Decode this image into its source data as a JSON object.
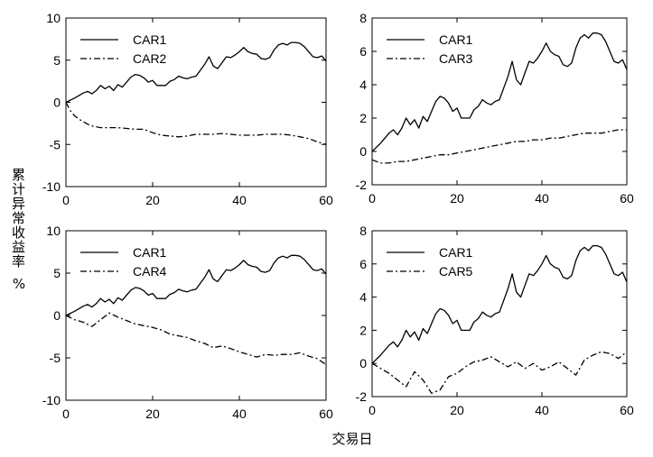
{
  "figure": {
    "ylabel_main": "累计异常收益率",
    "ylabel_unit": "%",
    "xlabel": "交易日"
  },
  "chart_data": [
    {
      "type": "line",
      "panel": "top-left",
      "xlim": [
        0,
        60
      ],
      "ylim": [
        -10,
        10
      ],
      "xticks": [
        0,
        20,
        40,
        60
      ],
      "yticks": [
        -10,
        -5,
        0,
        5,
        10
      ],
      "legend": "top-left",
      "series": [
        {
          "name": "CAR1",
          "style": "solid",
          "x": [
            0,
            2,
            4,
            5,
            6,
            7,
            8,
            9,
            10,
            11,
            12,
            13,
            14,
            15,
            16,
            17,
            18,
            19,
            20,
            21,
            22,
            23,
            24,
            25,
            26,
            27,
            28,
            29,
            30,
            31,
            32,
            33,
            34,
            35,
            36,
            37,
            38,
            39,
            40,
            41,
            42,
            43,
            44,
            45,
            46,
            47,
            48,
            49,
            50,
            51,
            52,
            53,
            54,
            55,
            56,
            57,
            58,
            59,
            60
          ],
          "y": [
            0,
            0.5,
            1.1,
            1.3,
            1.0,
            1.4,
            2.0,
            1.6,
            1.9,
            1.4,
            2.1,
            1.8,
            2.4,
            3.0,
            3.3,
            3.2,
            2.9,
            2.4,
            2.6,
            2.0,
            2.0,
            2.0,
            2.5,
            2.7,
            3.1,
            2.9,
            2.8,
            3.0,
            3.1,
            3.8,
            4.5,
            5.4,
            4.3,
            4.0,
            4.7,
            5.4,
            5.3,
            5.6,
            6.0,
            6.5,
            6.0,
            5.8,
            5.7,
            5.2,
            5.1,
            5.3,
            6.2,
            6.8,
            7.0,
            6.8,
            7.1,
            7.1,
            7.0,
            6.6,
            6.0,
            5.4,
            5.3,
            5.5,
            4.9
          ]
        },
        {
          "name": "CAR2",
          "style": "dashdot",
          "x": [
            0,
            1,
            2,
            3,
            4,
            5,
            6,
            8,
            10,
            12,
            14,
            16,
            18,
            20,
            22,
            24,
            26,
            28,
            30,
            32,
            34,
            36,
            38,
            40,
            42,
            44,
            46,
            48,
            50,
            52,
            54,
            56,
            58,
            60
          ],
          "y": [
            0,
            -1.0,
            -1.6,
            -2.0,
            -2.3,
            -2.6,
            -2.8,
            -3.0,
            -3.0,
            -3.0,
            -3.1,
            -3.2,
            -3.2,
            -3.6,
            -3.9,
            -4.0,
            -4.1,
            -4.0,
            -3.8,
            -3.8,
            -3.8,
            -3.7,
            -3.8,
            -3.9,
            -3.9,
            -3.9,
            -3.8,
            -3.8,
            -3.8,
            -3.9,
            -4.1,
            -4.3,
            -4.7,
            -5.0
          ]
        }
      ]
    },
    {
      "type": "line",
      "panel": "top-right",
      "xlim": [
        0,
        60
      ],
      "ylim": [
        -2,
        8
      ],
      "xticks": [
        0,
        20,
        40,
        60
      ],
      "yticks": [
        -2,
        0,
        2,
        4,
        6,
        8
      ],
      "legend": "top-left",
      "series": [
        {
          "name": "CAR1",
          "style": "solid",
          "x": [
            0,
            2,
            4,
            5,
            6,
            7,
            8,
            9,
            10,
            11,
            12,
            13,
            14,
            15,
            16,
            17,
            18,
            19,
            20,
            21,
            22,
            23,
            24,
            25,
            26,
            27,
            28,
            29,
            30,
            31,
            32,
            33,
            34,
            35,
            36,
            37,
            38,
            39,
            40,
            41,
            42,
            43,
            44,
            45,
            46,
            47,
            48,
            49,
            50,
            51,
            52,
            53,
            54,
            55,
            56,
            57,
            58,
            59,
            60
          ],
          "y": [
            0,
            0.5,
            1.1,
            1.3,
            1.0,
            1.4,
            2.0,
            1.6,
            1.9,
            1.4,
            2.1,
            1.8,
            2.4,
            3.0,
            3.3,
            3.2,
            2.9,
            2.4,
            2.6,
            2.0,
            2.0,
            2.0,
            2.5,
            2.7,
            3.1,
            2.9,
            2.8,
            3.0,
            3.1,
            3.8,
            4.5,
            5.4,
            4.3,
            4.0,
            4.7,
            5.4,
            5.3,
            5.6,
            6.0,
            6.5,
            6.0,
            5.8,
            5.7,
            5.2,
            5.1,
            5.3,
            6.2,
            6.8,
            7.0,
            6.8,
            7.1,
            7.1,
            7.0,
            6.6,
            6.0,
            5.4,
            5.3,
            5.5,
            4.9
          ]
        },
        {
          "name": "CAR3",
          "style": "dashdot",
          "x": [
            0,
            2,
            4,
            6,
            8,
            10,
            12,
            14,
            16,
            18,
            20,
            22,
            24,
            26,
            28,
            30,
            32,
            34,
            36,
            38,
            40,
            42,
            44,
            46,
            48,
            50,
            52,
            54,
            56,
            58,
            60
          ],
          "y": [
            -0.5,
            -0.7,
            -0.7,
            -0.6,
            -0.6,
            -0.5,
            -0.4,
            -0.3,
            -0.2,
            -0.2,
            -0.1,
            0.0,
            0.1,
            0.2,
            0.3,
            0.4,
            0.5,
            0.6,
            0.6,
            0.7,
            0.7,
            0.8,
            0.8,
            0.9,
            1.0,
            1.1,
            1.1,
            1.1,
            1.2,
            1.3,
            1.3
          ]
        }
      ]
    },
    {
      "type": "line",
      "panel": "bottom-left",
      "xlim": [
        0,
        60
      ],
      "ylim": [
        -10,
        10
      ],
      "xticks": [
        0,
        20,
        40,
        60
      ],
      "yticks": [
        -10,
        -5,
        0,
        5,
        10
      ],
      "legend": "top-left",
      "series": [
        {
          "name": "CAR1",
          "style": "solid",
          "x": [
            0,
            2,
            4,
            5,
            6,
            7,
            8,
            9,
            10,
            11,
            12,
            13,
            14,
            15,
            16,
            17,
            18,
            19,
            20,
            21,
            22,
            23,
            24,
            25,
            26,
            27,
            28,
            29,
            30,
            31,
            32,
            33,
            34,
            35,
            36,
            37,
            38,
            39,
            40,
            41,
            42,
            43,
            44,
            45,
            46,
            47,
            48,
            49,
            50,
            51,
            52,
            53,
            54,
            55,
            56,
            57,
            58,
            59,
            60
          ],
          "y": [
            0,
            0.5,
            1.1,
            1.3,
            1.0,
            1.4,
            2.0,
            1.6,
            1.9,
            1.4,
            2.1,
            1.8,
            2.4,
            3.0,
            3.3,
            3.2,
            2.9,
            2.4,
            2.6,
            2.0,
            2.0,
            2.0,
            2.5,
            2.7,
            3.1,
            2.9,
            2.8,
            3.0,
            3.1,
            3.8,
            4.5,
            5.4,
            4.3,
            4.0,
            4.7,
            5.4,
            5.3,
            5.6,
            6.0,
            6.5,
            6.0,
            5.8,
            5.7,
            5.2,
            5.1,
            5.3,
            6.2,
            6.8,
            7.0,
            6.8,
            7.1,
            7.1,
            7.0,
            6.6,
            6.0,
            5.4,
            5.3,
            5.5,
            4.9
          ]
        },
        {
          "name": "CAR4",
          "style": "dashdot",
          "x": [
            0,
            2,
            4,
            6,
            8,
            10,
            12,
            14,
            16,
            18,
            20,
            22,
            24,
            26,
            28,
            30,
            32,
            34,
            36,
            38,
            40,
            42,
            44,
            46,
            48,
            50,
            52,
            54,
            56,
            58,
            60
          ],
          "y": [
            0,
            -0.5,
            -0.8,
            -1.3,
            -0.5,
            0.3,
            -0.2,
            -0.6,
            -1.0,
            -1.2,
            -1.4,
            -1.7,
            -2.2,
            -2.4,
            -2.6,
            -3.0,
            -3.3,
            -3.8,
            -3.6,
            -3.9,
            -4.3,
            -4.6,
            -4.9,
            -4.6,
            -4.7,
            -4.6,
            -4.6,
            -4.4,
            -4.8,
            -5.1,
            -5.8
          ]
        }
      ]
    },
    {
      "type": "line",
      "panel": "bottom-right",
      "xlim": [
        0,
        60
      ],
      "ylim": [
        -2,
        8
      ],
      "xticks": [
        0,
        20,
        40,
        60
      ],
      "yticks": [
        -2,
        0,
        2,
        4,
        6,
        8
      ],
      "legend": "top-left",
      "series": [
        {
          "name": "CAR1",
          "style": "solid",
          "x": [
            0,
            2,
            4,
            5,
            6,
            7,
            8,
            9,
            10,
            11,
            12,
            13,
            14,
            15,
            16,
            17,
            18,
            19,
            20,
            21,
            22,
            23,
            24,
            25,
            26,
            27,
            28,
            29,
            30,
            31,
            32,
            33,
            34,
            35,
            36,
            37,
            38,
            39,
            40,
            41,
            42,
            43,
            44,
            45,
            46,
            47,
            48,
            49,
            50,
            51,
            52,
            53,
            54,
            55,
            56,
            57,
            58,
            59,
            60
          ],
          "y": [
            0,
            0.5,
            1.1,
            1.3,
            1.0,
            1.4,
            2.0,
            1.6,
            1.9,
            1.4,
            2.1,
            1.8,
            2.4,
            3.0,
            3.3,
            3.2,
            2.9,
            2.4,
            2.6,
            2.0,
            2.0,
            2.0,
            2.5,
            2.7,
            3.1,
            2.9,
            2.8,
            3.0,
            3.1,
            3.8,
            4.5,
            5.4,
            4.3,
            4.0,
            4.7,
            5.4,
            5.3,
            5.6,
            6.0,
            6.5,
            6.0,
            5.8,
            5.7,
            5.2,
            5.1,
            5.3,
            6.2,
            6.8,
            7.0,
            6.8,
            7.1,
            7.1,
            7.0,
            6.6,
            6.0,
            5.4,
            5.3,
            5.5,
            4.9
          ]
        },
        {
          "name": "CAR5",
          "style": "dashdot",
          "x": [
            0,
            2,
            4,
            6,
            8,
            10,
            12,
            14,
            16,
            18,
            20,
            22,
            24,
            26,
            28,
            30,
            32,
            34,
            36,
            38,
            40,
            42,
            44,
            46,
            48,
            50,
            52,
            54,
            56,
            58,
            60
          ],
          "y": [
            0,
            -0.3,
            -0.6,
            -1.0,
            -1.4,
            -0.5,
            -1.0,
            -1.8,
            -1.6,
            -0.8,
            -0.6,
            -0.2,
            0.1,
            0.2,
            0.4,
            0.1,
            -0.2,
            0.1,
            -0.3,
            0.0,
            -0.4,
            -0.2,
            0.1,
            -0.3,
            -0.7,
            0.2,
            0.5,
            0.7,
            0.6,
            0.3,
            0.7
          ]
        }
      ]
    }
  ]
}
